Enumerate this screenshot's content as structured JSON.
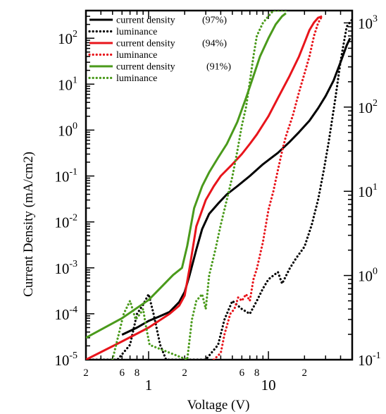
{
  "chart_data": {
    "type": "line",
    "xlabel": "Voltage (V)",
    "ylabel": "Current Density (mA/cm2)",
    "xscale": "log",
    "yscale": "log",
    "y2scale": "log",
    "xlim": [
      0.3,
      50
    ],
    "ylim": [
      1e-05,
      400
    ],
    "y2lim": [
      0.1,
      1400
    ],
    "x_major_ticks": [
      {
        "value": 1,
        "label": "1"
      },
      {
        "value": 10,
        "label": "10"
      }
    ],
    "x_minor_tick_labels": [
      {
        "value": 0.2,
        "label": "2"
      },
      {
        "value": 0.6,
        "label": "6"
      },
      {
        "value": 0.8,
        "label": "8"
      },
      {
        "value": 2,
        "label": "2"
      },
      {
        "value": 6,
        "label": "6"
      },
      {
        "value": 8,
        "label": "8"
      },
      {
        "value": 20,
        "label": "2"
      }
    ],
    "y_ticks": [
      {
        "value": 1e-05,
        "base": "10",
        "exp": "-5"
      },
      {
        "value": 0.0001,
        "base": "10",
        "exp": "-4"
      },
      {
        "value": 0.001,
        "base": "10",
        "exp": "-3"
      },
      {
        "value": 0.01,
        "base": "10",
        "exp": "-2"
      },
      {
        "value": 0.1,
        "base": "10",
        "exp": "-1"
      },
      {
        "value": 1,
        "base": "10",
        "exp": "0"
      },
      {
        "value": 10,
        "base": "10",
        "exp": "1"
      },
      {
        "value": 100,
        "base": "10",
        "exp": "2"
      }
    ],
    "y2_ticks": [
      {
        "value": 0.1,
        "base": "10",
        "exp": "-1"
      },
      {
        "value": 1,
        "base": "10",
        "exp": "0"
      },
      {
        "value": 10,
        "base": "10",
        "exp": "1"
      },
      {
        "value": 100,
        "base": "10",
        "exp": "2"
      },
      {
        "value": 1000,
        "base": "10",
        "exp": "3"
      }
    ],
    "legend_position": "top-left",
    "series": [
      {
        "name": "current density",
        "pct": "(97%)",
        "color": "#000000",
        "style": "solid",
        "axis": "left",
        "x": [
          0.6,
          0.8,
          1.0,
          1.2,
          1.5,
          1.8,
          2.0,
          2.2,
          2.5,
          2.8,
          3.2,
          3.8,
          4.5,
          5.5,
          7,
          9,
          12,
          15,
          18,
          22,
          26,
          30,
          35,
          40,
          45,
          48
        ],
        "y": [
          3.5e-05,
          5e-05,
          7e-05,
          8.5e-05,
          0.00011,
          0.00018,
          0.0003,
          0.0007,
          0.0025,
          0.007,
          0.015,
          0.025,
          0.04,
          0.06,
          0.1,
          0.18,
          0.32,
          0.55,
          0.9,
          1.6,
          3,
          5.5,
          12,
          30,
          70,
          100
        ]
      },
      {
        "name": "luminance",
        "pct": "",
        "color": "#000000",
        "style": "dotted",
        "axis": "right",
        "x": [
          0.3,
          0.55,
          0.7,
          0.8,
          0.9,
          1.0,
          1.1,
          1.25,
          1.4,
          1.6,
          3.0,
          3.8,
          4.3,
          5,
          6,
          7,
          8,
          9,
          10,
          11,
          12,
          13,
          15,
          17,
          20,
          23,
          26,
          29,
          32,
          36,
          40,
          45,
          50
        ],
        "y": [
          0.1,
          0.1,
          0.15,
          0.35,
          0.45,
          0.6,
          0.35,
          0.15,
          0.1,
          0.1,
          0.1,
          0.15,
          0.3,
          0.5,
          0.4,
          0.35,
          0.5,
          0.7,
          0.9,
          1.0,
          1.1,
          0.8,
          1.2,
          1.6,
          2.2,
          4,
          8,
          18,
          40,
          120,
          350,
          900,
          1100
        ]
      },
      {
        "name": "current density",
        "pct": "(94%)",
        "color": "#e8141b",
        "style": "solid",
        "axis": "left",
        "x": [
          0.3,
          0.6,
          1.0,
          1.5,
          1.8,
          2.0,
          2.2,
          2.5,
          3.0,
          3.5,
          4.0,
          5.0,
          6.0,
          7.0,
          8.0,
          10,
          12,
          15,
          18,
          20,
          22,
          24,
          26,
          28
        ],
        "y": [
          1e-05,
          2.5e-05,
          5e-05,
          0.0001,
          0.00015,
          0.00025,
          0.001,
          0.008,
          0.03,
          0.06,
          0.1,
          0.18,
          0.3,
          0.5,
          0.8,
          2,
          5,
          15,
          40,
          80,
          150,
          220,
          280,
          300
        ]
      },
      {
        "name": "luminance",
        "pct": "",
        "color": "#e8141b",
        "style": "dotted",
        "axis": "right",
        "x": [
          3.5,
          4.0,
          4.3,
          4.8,
          5.2,
          5.6,
          6.0,
          6.5,
          7.0,
          7.5,
          8,
          9,
          10,
          11,
          12,
          13,
          14,
          16,
          18,
          20,
          22,
          24,
          26,
          28
        ],
        "y": [
          0.1,
          0.12,
          0.2,
          0.35,
          0.4,
          0.55,
          0.5,
          0.6,
          0.5,
          0.9,
          1.2,
          2.5,
          6,
          10,
          18,
          30,
          45,
          80,
          150,
          250,
          400,
          700,
          1000,
          1200
        ]
      },
      {
        "name": "current density",
        "pct": "(91%)",
        "color": "#4a9a1b",
        "style": "solid",
        "axis": "left",
        "x": [
          0.3,
          0.6,
          1.0,
          1.3,
          1.6,
          1.9,
          2.1,
          2.4,
          2.8,
          3.2,
          3.8,
          4.5,
          5.5,
          6.5,
          7.5,
          8.5,
          10,
          11.5,
          13,
          14
        ],
        "y": [
          3e-05,
          8e-05,
          0.0002,
          0.0004,
          0.0007,
          0.001,
          0.003,
          0.02,
          0.06,
          0.12,
          0.25,
          0.5,
          1.5,
          5,
          15,
          40,
          100,
          200,
          300,
          350
        ]
      },
      {
        "name": "luminance",
        "pct": "",
        "color": "#4a9a1b",
        "style": "dotted",
        "axis": "right",
        "x": [
          0.5,
          0.62,
          0.7,
          0.78,
          0.85,
          0.9,
          0.95,
          1.02,
          2.1,
          2.3,
          2.5,
          2.8,
          3.0,
          3.2,
          3.6,
          4.0,
          4.5,
          5.0,
          5.5,
          6.0,
          6.5,
          7.0,
          7.5,
          8.0,
          9,
          10,
          11,
          12,
          13,
          14
        ],
        "y": [
          0.1,
          0.35,
          0.5,
          0.3,
          0.35,
          0.4,
          0.25,
          0.15,
          0.1,
          0.3,
          0.5,
          0.6,
          0.4,
          1.0,
          2.0,
          4,
          8,
          15,
          30,
          60,
          100,
          200,
          400,
          700,
          1000,
          1200,
          1400,
          1400,
          1400,
          1400
        ]
      }
    ]
  }
}
